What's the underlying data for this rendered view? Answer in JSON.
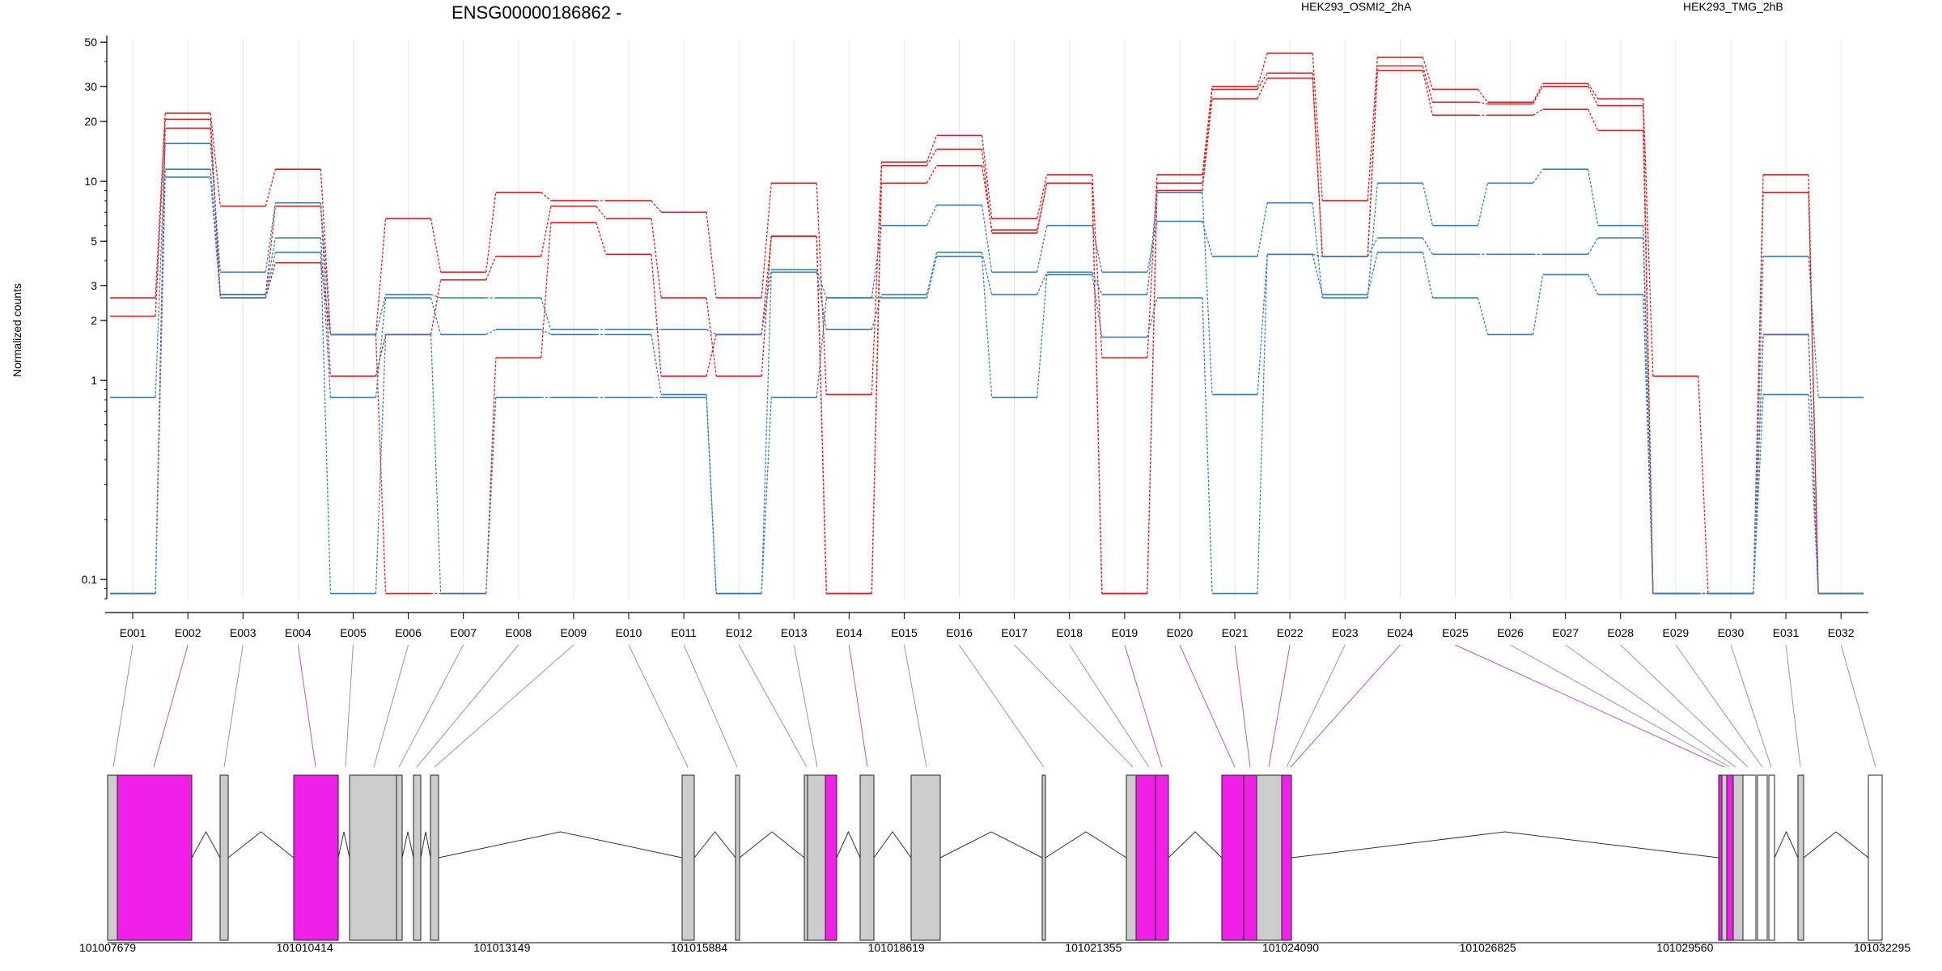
{
  "chart_data": {
    "type": "line",
    "title": "ENSG00000186862 -",
    "ylabel": "Normalized counts",
    "xlabel": "",
    "y_scale": "log",
    "ylim": [
      0.08,
      52
    ],
    "y_ticks": [
      0.1,
      1,
      2,
      3,
      5,
      10,
      20,
      30,
      50
    ],
    "y_tick_labels": [
      "0.1",
      "1",
      "2",
      "3",
      "5",
      "10",
      "20",
      "30",
      "50"
    ],
    "legend": [
      {
        "label": "HEK293_OSMI2_2hA",
        "color": "#e41a1c"
      },
      {
        "label": "HEK293_TMG_2hB",
        "color": "#377eb8"
      }
    ],
    "categories": [
      "E001",
      "E002",
      "E003",
      "E004",
      "E005",
      "E006",
      "E007",
      "E008",
      "E009",
      "E010",
      "E011",
      "E012",
      "E013",
      "E014",
      "E015",
      "E016",
      "E017",
      "E018",
      "E019",
      "E020",
      "E021",
      "E022",
      "E023",
      "E024",
      "E025",
      "E026",
      "E027",
      "E028",
      "E029",
      "E030",
      "E031",
      "E032"
    ],
    "series": [
      {
        "group": "HEK293_OSMI2_2hA",
        "color": "#e41a1c",
        "values": [
          2.6,
          22,
          7.5,
          11.5,
          1.7,
          6.5,
          3.5,
          8.8,
          8.0,
          8.0,
          7.0,
          2.6,
          9.8,
          0.85,
          12.5,
          17,
          6.5,
          10.8,
          1.3,
          10.8,
          30,
          44,
          8.0,
          42,
          29,
          25,
          31,
          26,
          1.05,
          0.085,
          10.8,
          0.085
        ]
      },
      {
        "group": "HEK293_OSMI2_2hA",
        "color": "#e41a1c",
        "values": [
          2.1,
          20.5,
          2.7,
          7.5,
          1.05,
          1.7,
          3.2,
          4.2,
          7.5,
          6.5,
          2.6,
          1.05,
          5.3,
          0.085,
          12,
          14.5,
          5.5,
          9.8,
          0.085,
          9.8,
          29,
          35,
          4.2,
          38,
          25,
          24.5,
          30,
          24,
          0.085,
          0.085,
          8.8,
          0.085
        ]
      },
      {
        "group": "HEK293_OSMI2_2hA",
        "color": "#e41a1c",
        "values": [
          0.085,
          18.5,
          2.6,
          3.9,
          1.7,
          0.085,
          0.085,
          1.3,
          6.2,
          4.3,
          1.05,
          1.7,
          5.3,
          0.085,
          9.8,
          12,
          5.7,
          9.8,
          0.085,
          9.0,
          26,
          33,
          4.2,
          36,
          21.5,
          21.5,
          23,
          18,
          0.085,
          0.085,
          1.7,
          0.085
        ]
      },
      {
        "group": "HEK293_TMG_2hB",
        "color": "#377eb8",
        "values": [
          0.82,
          15.5,
          3.5,
          7.8,
          1.7,
          2.7,
          2.6,
          2.6,
          1.8,
          1.8,
          1.8,
          1.7,
          3.6,
          2.6,
          6.0,
          7.6,
          3.5,
          6.0,
          3.5,
          6.3,
          4.2,
          7.8,
          2.6,
          9.8,
          6.0,
          9.8,
          11.5,
          6.0,
          0.085,
          0.085,
          4.2,
          0.82
        ]
      },
      {
        "group": "HEK293_TMG_2hB",
        "color": "#377eb8",
        "values": [
          0.085,
          11.5,
          2.7,
          5.2,
          0.82,
          2.6,
          1.7,
          1.8,
          1.7,
          1.7,
          0.85,
          0.085,
          3.5,
          1.8,
          2.7,
          4.4,
          2.7,
          3.5,
          2.7,
          8.8,
          0.85,
          4.3,
          4.2,
          5.2,
          4.3,
          4.3,
          4.3,
          5.2,
          0.085,
          0.085,
          0.85,
          0.085
        ]
      },
      {
        "group": "HEK293_TMG_2hB",
        "color": "#377eb8",
        "values": [
          0.085,
          10.5,
          2.6,
          4.4,
          0.085,
          1.7,
          0.085,
          0.82,
          0.82,
          0.82,
          0.82,
          0.085,
          0.82,
          2.6,
          2.6,
          4.2,
          0.82,
          3.4,
          1.65,
          2.6,
          0.085,
          4.3,
          2.7,
          4.4,
          2.6,
          1.7,
          3.4,
          2.7,
          0.085,
          0.085,
          1.7,
          0.085
        ]
      }
    ],
    "genomic_ticks": [
      "101007679",
      "101010414",
      "101013149",
      "101015884",
      "101018619",
      "101021355",
      "101024090",
      "101026825",
      "101029560",
      "101032295"
    ],
    "gene_model": {
      "exon_color_default": "#cccccc",
      "exon_color_highlight": "#f020e8",
      "exon_color_utr": "#ffffff"
    }
  }
}
